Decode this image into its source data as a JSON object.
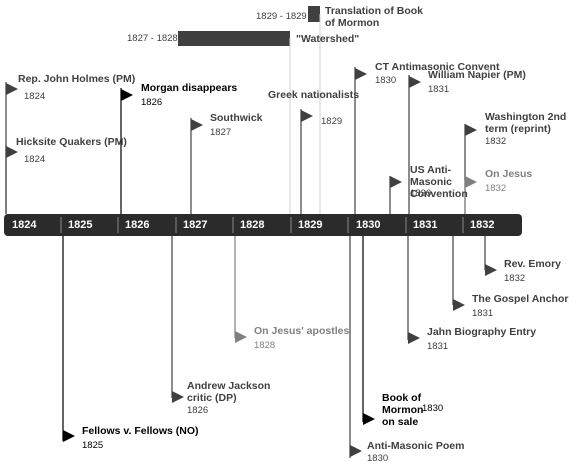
{
  "colors": {
    "axis": "#2b2b2b",
    "event": "#404040",
    "event_light": "#808080",
    "emphasis": "#000000",
    "axis_text": "#ffffff",
    "bar": "#404040"
  },
  "axis_years": [
    "1824",
    "1825",
    "1826",
    "1827",
    "1828",
    "1829",
    "1830",
    "1831",
    "1832"
  ],
  "spans": {
    "mormon_translation": {
      "range": "1829 - 1829",
      "label": "Translation of Book of Mormon"
    },
    "watershed": {
      "range": "1827 - 1828",
      "label": "\"Watershed\""
    }
  },
  "events": [
    {
      "key": "holmes",
      "label": "Rep. John Holmes (PM)",
      "year": "1824"
    },
    {
      "key": "hicksite",
      "label": "Hicksite Quakers (PM)",
      "year": "1824"
    },
    {
      "key": "morgan",
      "label": "Morgan disappears",
      "year": "1826"
    },
    {
      "key": "southwick",
      "label": "Southwick",
      "year": "1827"
    },
    {
      "key": "greek",
      "label": "Greek nationalists",
      "year": "1829"
    },
    {
      "key": "ct_antimasonic",
      "label": "CT Antimasonic Convent",
      "year": "1830"
    },
    {
      "key": "napier",
      "label": "William Napier (PM)",
      "year": "1831"
    },
    {
      "key": "us_antimasonic",
      "label": "US Anti-Masonic Convention",
      "year": "1830"
    },
    {
      "key": "washington",
      "label": "Washington 2nd term (reprint)",
      "year": "1832"
    },
    {
      "key": "on_jesus",
      "label": "On Jesus",
      "year": "1832"
    },
    {
      "key": "emory",
      "label": "Rev. Emory",
      "year": "1832"
    },
    {
      "key": "gospel_anchor",
      "label": "The Gospel Anchor",
      "year": "1831"
    },
    {
      "key": "apostles",
      "label": "On Jesus' apostles",
      "year": "1828"
    },
    {
      "key": "jahn",
      "label": "Jahn Biography Entry",
      "year": "1831"
    },
    {
      "key": "jackson",
      "label": "Andrew Jackson critic (DP)",
      "year": "1826"
    },
    {
      "key": "book_sale",
      "label": "Book of Mormon on sale",
      "year": "1830"
    },
    {
      "key": "fellows",
      "label": "Fellows v. Fellows (NO)",
      "year": "1825"
    },
    {
      "key": "poem",
      "label": "Anti-Masonic Poem",
      "year": "1830"
    }
  ]
}
